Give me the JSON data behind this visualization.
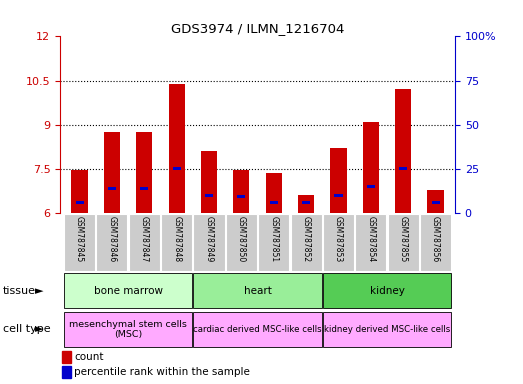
{
  "title": "GDS3974 / ILMN_1216704",
  "samples": [
    "GSM787845",
    "GSM787846",
    "GSM787847",
    "GSM787848",
    "GSM787849",
    "GSM787850",
    "GSM787851",
    "GSM787852",
    "GSM787853",
    "GSM787854",
    "GSM787855",
    "GSM787856"
  ],
  "red_values": [
    7.45,
    8.75,
    8.75,
    10.4,
    8.1,
    7.45,
    7.35,
    6.6,
    8.2,
    9.1,
    10.2,
    6.8
  ],
  "blue_values": [
    6.35,
    6.85,
    6.85,
    7.5,
    6.6,
    6.55,
    6.35,
    6.35,
    6.6,
    6.9,
    7.5,
    6.35
  ],
  "ylim_left": [
    6,
    12
  ],
  "ylim_right": [
    0,
    100
  ],
  "yticks_left": [
    6,
    7.5,
    9,
    10.5,
    12
  ],
  "ytick_labels_left": [
    "6",
    "7.5",
    "9",
    "10.5",
    "12"
  ],
  "yticks_right": [
    0,
    25,
    50,
    75,
    100
  ],
  "ytick_labels_right": [
    "0",
    "25",
    "50",
    "75",
    "100%"
  ],
  "tissue_groups": [
    {
      "label": "bone marrow",
      "start": 0,
      "end": 3,
      "color": "#ccffcc"
    },
    {
      "label": "heart",
      "start": 4,
      "end": 7,
      "color": "#99ee99"
    },
    {
      "label": "kidney",
      "start": 8,
      "end": 11,
      "color": "#55cc55"
    }
  ],
  "cell_type_groups": [
    {
      "label": "mesenchymal stem cells\n(MSC)",
      "start": 0,
      "end": 3,
      "color": "#ffaaff"
    },
    {
      "label": "cardiac derived MSC-like cells",
      "start": 4,
      "end": 7,
      "color": "#ffaaff"
    },
    {
      "label": "kidney derived MSC-like cells",
      "start": 8,
      "end": 11,
      "color": "#ffaaff"
    }
  ],
  "bar_color_red": "#cc0000",
  "bar_color_blue": "#0000cc",
  "bar_width": 0.5,
  "left_axis_color": "#cc0000",
  "right_axis_color": "#0000cc",
  "tick_bg_color": "#cccccc",
  "legend_items": [
    {
      "color": "#cc0000",
      "label": "count"
    },
    {
      "color": "#0000cc",
      "label": "percentile rank within the sample"
    }
  ]
}
